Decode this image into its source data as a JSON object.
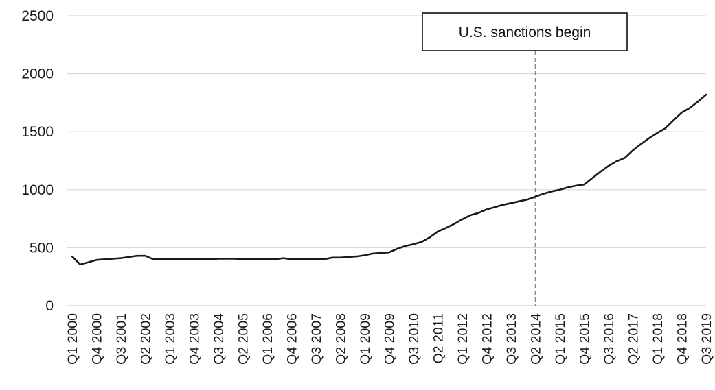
{
  "chart_data": {
    "type": "line",
    "title": "",
    "xlabel": "",
    "ylabel": "",
    "ylim": [
      0,
      2500
    ],
    "y_ticks": [
      0,
      500,
      1000,
      1500,
      2000,
      2500
    ],
    "grid": "horizontal",
    "x_tick_labels": [
      "Q1 2000",
      "Q4 2000",
      "Q3 2001",
      "Q2 2002",
      "Q1 2003",
      "Q4 2003",
      "Q3 2004",
      "Q2 2005",
      "Q1 2006",
      "Q4 2006",
      "Q3 2007",
      "Q2 2008",
      "Q1 2009",
      "Q4 2009",
      "Q3 2010",
      "Q2 2011",
      "Q1 2012",
      "Q4 2012",
      "Q3 2013",
      "Q2 2014",
      "Q1 2015",
      "Q4 2015",
      "Q3 2016",
      "Q2 2017",
      "Q1 2018",
      "Q4 2018",
      "Q3 2019"
    ],
    "x": [
      "Q1 2000",
      "Q2 2000",
      "Q3 2000",
      "Q4 2000",
      "Q1 2001",
      "Q2 2001",
      "Q3 2001",
      "Q4 2001",
      "Q1 2002",
      "Q2 2002",
      "Q3 2002",
      "Q4 2002",
      "Q1 2003",
      "Q2 2003",
      "Q3 2003",
      "Q4 2003",
      "Q1 2004",
      "Q2 2004",
      "Q3 2004",
      "Q4 2004",
      "Q1 2005",
      "Q2 2005",
      "Q3 2005",
      "Q4 2005",
      "Q1 2006",
      "Q2 2006",
      "Q3 2006",
      "Q4 2006",
      "Q1 2007",
      "Q2 2007",
      "Q3 2007",
      "Q4 2007",
      "Q1 2008",
      "Q2 2008",
      "Q3 2008",
      "Q4 2008",
      "Q1 2009",
      "Q2 2009",
      "Q3 2009",
      "Q4 2009",
      "Q1 2010",
      "Q2 2010",
      "Q3 2010",
      "Q4 2010",
      "Q1 2011",
      "Q2 2011",
      "Q3 2011",
      "Q4 2011",
      "Q1 2012",
      "Q2 2012",
      "Q3 2012",
      "Q4 2012",
      "Q1 2013",
      "Q2 2013",
      "Q3 2013",
      "Q4 2013",
      "Q1 2014",
      "Q2 2014",
      "Q3 2014",
      "Q4 2014",
      "Q1 2015",
      "Q2 2015",
      "Q3 2015",
      "Q4 2015",
      "Q1 2016",
      "Q2 2016",
      "Q3 2016",
      "Q4 2016",
      "Q1 2017",
      "Q2 2017",
      "Q3 2017",
      "Q4 2017",
      "Q1 2018",
      "Q2 2018",
      "Q3 2018",
      "Q4 2018",
      "Q1 2019",
      "Q2 2019",
      "Q3 2019"
    ],
    "series": [
      {
        "values": [
          425,
          355,
          375,
          395,
          400,
          405,
          410,
          420,
          430,
          430,
          400,
          400,
          400,
          400,
          400,
          400,
          400,
          400,
          405,
          405,
          405,
          400,
          400,
          400,
          400,
          400,
          410,
          400,
          400,
          400,
          400,
          400,
          415,
          415,
          420,
          425,
          435,
          450,
          455,
          460,
          490,
          515,
          530,
          550,
          590,
          640,
          670,
          705,
          745,
          780,
          800,
          830,
          850,
          870,
          885,
          900,
          915,
          940,
          965,
          985,
          1000,
          1020,
          1035,
          1045,
          1100,
          1155,
          1205,
          1245,
          1275,
          1340,
          1395,
          1445,
          1490,
          1530,
          1600,
          1665,
          1705,
          1760,
          1820
        ]
      }
    ],
    "line_color": "#1a1a1a",
    "annotation": {
      "label": "U.S. sanctions begin",
      "at_x": "Q2 2014",
      "line_style": "dashed",
      "line_color": "#888888"
    }
  }
}
